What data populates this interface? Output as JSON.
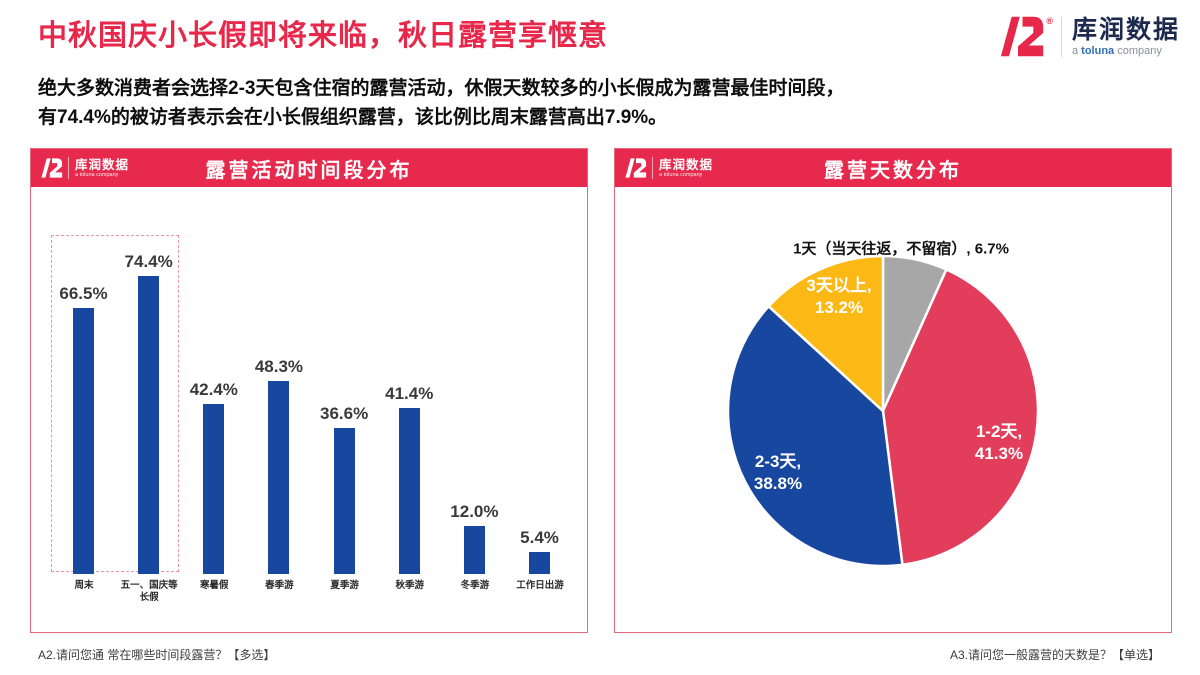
{
  "page": {
    "title": "中秋国庆小长假即将来临，秋日露营享惬意",
    "subtitle_line1": "绝大多数消费者会选择2-3天包含住宿的露营活动，休假天数较多的小长假成为露营最佳时间段，",
    "subtitle_line2": "有74.4%的被访者表示会在小长假组织露营，该比例比周末露营高出7.9%。"
  },
  "logo": {
    "name": "库润数据",
    "registered": "®",
    "tagline_a": "a ",
    "tagline_toluna": "toluna",
    "tagline_company": " company",
    "tagline_full": "a toluna company"
  },
  "colors": {
    "brand_red": "#e7284b",
    "band_red": "#e7294d",
    "card_border": "#e2687c",
    "bar_blue": "#17479e",
    "pie_gray": "#a7a7a7",
    "pie_red": "#e23d5a",
    "pie_blue": "#17479e",
    "pie_yellow": "#fcb814"
  },
  "footer": {
    "left_note": "A2.请问您通 常在哪些时间段露营？【多选】",
    "right_note": "A3.请问您一般露营的天数是？【单选】"
  },
  "chart_data": [
    {
      "type": "bar",
      "title": "露营活动时间段分布",
      "categories": [
        "周末",
        "五一、国庆等\n长假",
        "寒暑假",
        "春季游",
        "夏季游",
        "秋季游",
        "冬季游",
        "工作日出游"
      ],
      "values": [
        66.5,
        74.4,
        42.4,
        48.3,
        36.6,
        41.4,
        12.0,
        5.4
      ],
      "value_labels": [
        "66.5%",
        "74.4%",
        "42.4%",
        "48.3%",
        "36.6%",
        "41.4%",
        "12.0%",
        "5.4%"
      ],
      "bar_color": "#17479e",
      "ylim": [
        0,
        80
      ],
      "grid": false,
      "highlight": {
        "indices": [
          0,
          1
        ],
        "style": "dashed-red-box"
      }
    },
    {
      "type": "pie",
      "title": "露营天数分布",
      "start": "top",
      "direction": "clockwise",
      "slices": [
        {
          "label": "1天（当天往返，不留宿）",
          "value": 6.7,
          "display": "6.7%",
          "color": "#a7a7a7",
          "label_position": "outside"
        },
        {
          "label": "1-2天",
          "value": 41.3,
          "display": "41.3%",
          "color": "#e23d5a",
          "label_position": "inside"
        },
        {
          "label": "2-3天",
          "value": 38.8,
          "display": "38.8%",
          "color": "#17479e",
          "label_position": "inside"
        },
        {
          "label": "3天以上",
          "value": 13.2,
          "display": "13.2%",
          "color": "#fcb814",
          "label_position": "inside"
        }
      ]
    }
  ]
}
